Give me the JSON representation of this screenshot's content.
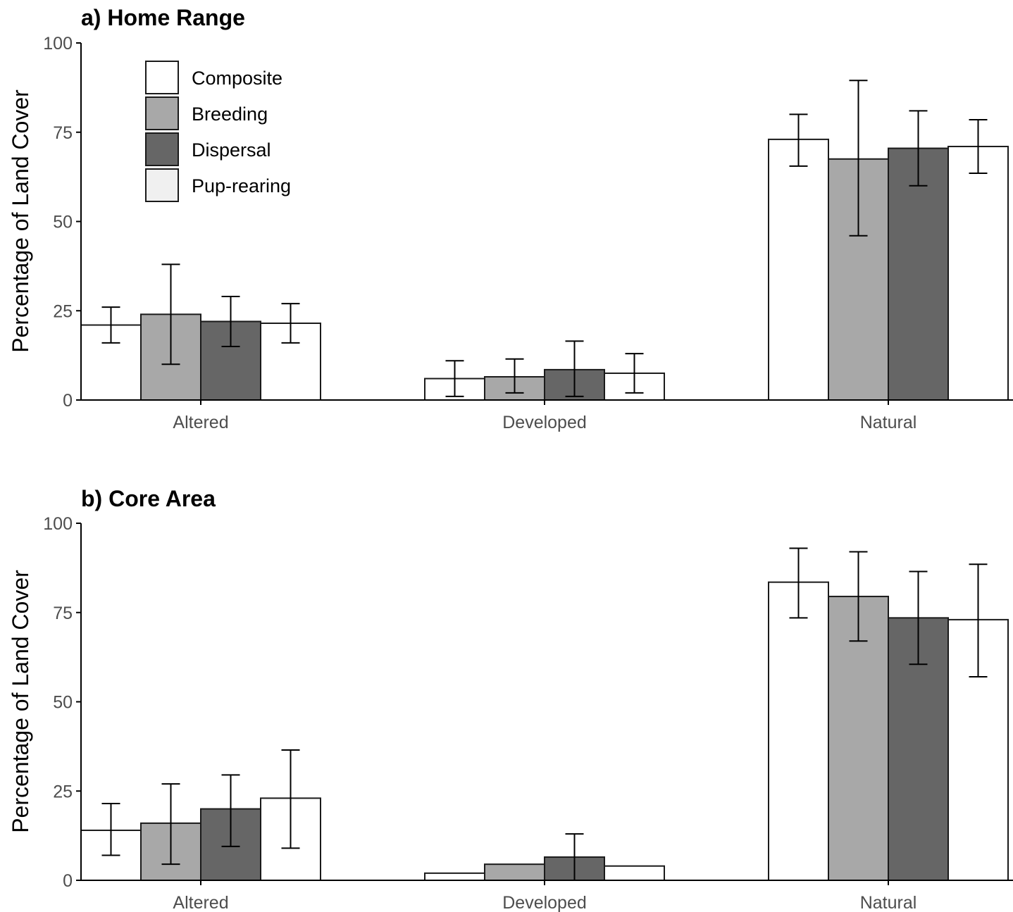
{
  "figure": {
    "panels": [
      "a",
      "b"
    ]
  },
  "legend": {
    "items": [
      {
        "name": "Composite",
        "color": "#ffffff"
      },
      {
        "name": "Breeding",
        "color": "#a8a8a8"
      },
      {
        "name": "Dispersal",
        "color": "#666666"
      },
      {
        "name": "Pup-rearing",
        "color": "#f0f0f0"
      }
    ]
  },
  "chart_data": [
    {
      "type": "bar",
      "title": "a) Home Range",
      "xlabel": "",
      "ylabel": "Percentage of Land Cover",
      "ylim": [
        0,
        100
      ],
      "yticks": [
        0,
        25,
        50,
        75,
        100
      ],
      "categories": [
        "Altered",
        "Developed",
        "Natural"
      ],
      "legend_position": "top-left",
      "grid": false,
      "series": [
        {
          "name": "Composite",
          "color": "#ffffff",
          "values": [
            21,
            6,
            73
          ],
          "err_low": [
            16,
            1,
            65.5
          ],
          "err_high": [
            26,
            11,
            80
          ]
        },
        {
          "name": "Breeding",
          "color": "#a8a8a8",
          "values": [
            24,
            6.5,
            67.5
          ],
          "err_low": [
            10,
            2,
            46
          ],
          "err_high": [
            38,
            11.5,
            89.5
          ]
        },
        {
          "name": "Dispersal",
          "color": "#666666",
          "values": [
            22,
            8.5,
            70.5
          ],
          "err_low": [
            15,
            1,
            60
          ],
          "err_high": [
            29,
            16.5,
            81
          ]
        },
        {
          "name": "Pup-rearing",
          "color": "#ffffff",
          "values": [
            21.5,
            7.5,
            71
          ],
          "err_low": [
            16,
            2,
            63.5
          ],
          "err_high": [
            27,
            13,
            78.5
          ]
        }
      ]
    },
    {
      "type": "bar",
      "title": "b) Core Area",
      "xlabel": "",
      "ylabel": "Percentage of Land Cover",
      "ylim": [
        0,
        100
      ],
      "yticks": [
        0,
        25,
        50,
        75,
        100
      ],
      "categories": [
        "Altered",
        "Developed",
        "Natural"
      ],
      "grid": false,
      "series": [
        {
          "name": "Composite",
          "color": "#ffffff",
          "values": [
            14,
            2,
            83.5
          ],
          "err_low": [
            7,
            null,
            73.5
          ],
          "err_high": [
            21.5,
            null,
            93
          ]
        },
        {
          "name": "Breeding",
          "color": "#a8a8a8",
          "values": [
            16,
            4.5,
            79.5
          ],
          "err_low": [
            4.5,
            null,
            67
          ],
          "err_high": [
            27,
            null,
            92
          ]
        },
        {
          "name": "Dispersal",
          "color": "#666666",
          "values": [
            20,
            6.5,
            73.5
          ],
          "err_low": [
            9.5,
            0,
            60.5
          ],
          "err_high": [
            29.5,
            13,
            86.5
          ]
        },
        {
          "name": "Pup-rearing",
          "color": "#ffffff",
          "values": [
            23,
            4,
            73
          ],
          "err_low": [
            9,
            null,
            57
          ],
          "err_high": [
            36.5,
            null,
            88.5
          ]
        }
      ]
    }
  ]
}
